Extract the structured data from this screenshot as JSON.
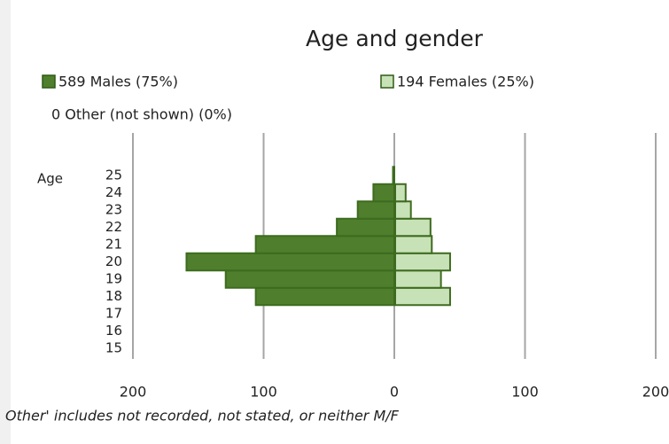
{
  "chart_data": {
    "type": "pyramid",
    "title": "Age and gender",
    "y_label": "Age",
    "categories": [
      "15",
      "16",
      "17",
      "18",
      "19",
      "20",
      "21",
      "22",
      "23",
      "24",
      "25"
    ],
    "series": [
      {
        "name": "589 Males (75%)",
        "color": "#4f7f2c",
        "side": "left",
        "values": [
          0,
          0,
          0,
          106,
          129,
          159,
          106,
          44,
          28,
          16,
          1
        ]
      },
      {
        "name": "194 Females (25%)",
        "color": "#c8e2b8",
        "side": "right",
        "values": [
          0,
          0,
          0,
          42,
          35,
          42,
          28,
          27,
          12,
          8,
          0
        ]
      }
    ],
    "legend_note": "0 Other (not shown) (0%)",
    "xlim": [
      -200,
      200
    ],
    "xticks": [
      {
        "value": -200,
        "label": "200"
      },
      {
        "value": -100,
        "label": "100"
      },
      0,
      100,
      200
    ],
    "grid": true,
    "footnote": "Other' includes not recorded, not stated, or neither M/F"
  }
}
